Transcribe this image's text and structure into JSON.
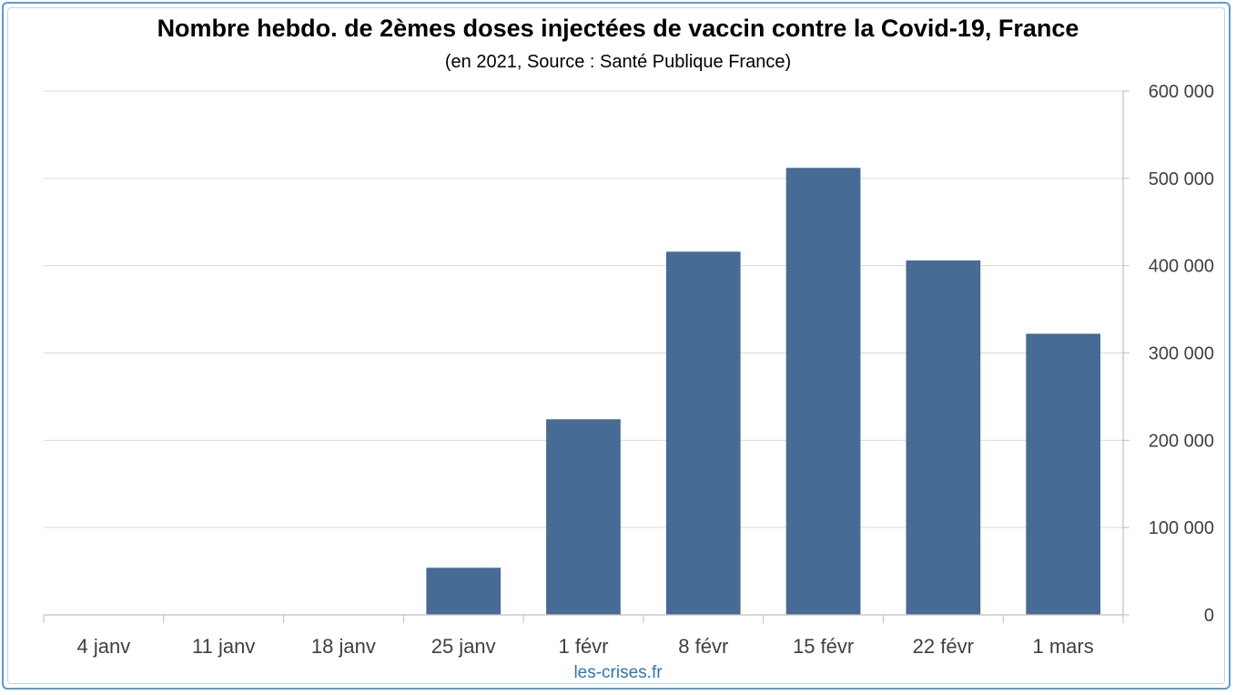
{
  "chart_data": {
    "type": "bar",
    "title": "Nombre hebdo. de 2èmes doses injectées de vaccin contre la Covid-19, France",
    "subtitle": "(en 2021, Source : Santé Publique France)",
    "source_label": "les-crises.fr",
    "categories": [
      "4 janv",
      "11 janv",
      "18 janv",
      "25 janv",
      "1 févr",
      "8 févr",
      "15 févr",
      "22 févr",
      "1 mars"
    ],
    "values": [
      0,
      0,
      0,
      54000,
      224000,
      416000,
      512000,
      406000,
      322000
    ],
    "ylim": [
      0,
      600000
    ],
    "yticks": [
      0,
      100000,
      200000,
      300000,
      400000,
      500000,
      600000
    ],
    "ytick_labels": [
      "0",
      "100 000",
      "200 000",
      "300 000",
      "400 000",
      "500 000",
      "600 000"
    ],
    "y_axis_side": "right",
    "grid": true,
    "legend": "none",
    "colors": {
      "bar": "#466b94",
      "grid": "#d9d9d9",
      "axis": "#bfbfbf",
      "frame": "#5b9bd5",
      "source": "#2e75b6"
    }
  }
}
